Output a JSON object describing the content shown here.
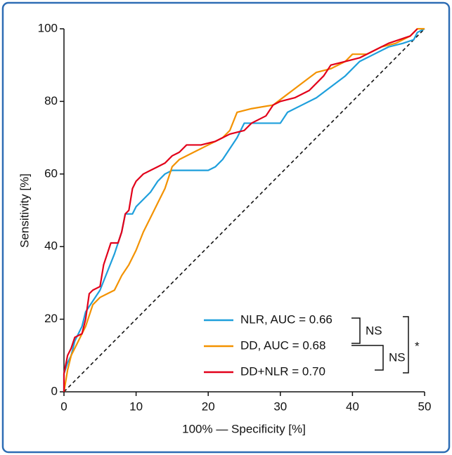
{
  "chart_data": {
    "type": "line",
    "x_label": "100% — Specificity [%]",
    "y_label": "Sensitivity [%]",
    "xlim": [
      0,
      50
    ],
    "xticks": [
      0,
      10,
      20,
      30,
      40,
      50
    ],
    "ylim": [
      0,
      100
    ],
    "yticks": [
      0,
      20,
      40,
      60,
      80,
      100
    ],
    "diagonal": true,
    "series": [
      {
        "name": "NLR, AUC = 0.66",
        "color": "#1e9fdc",
        "x": [
          0,
          0,
          0.5,
          1,
          1.5,
          2,
          2.5,
          3,
          4,
          5,
          6,
          7,
          8,
          8.5,
          9.5,
          10,
          11,
          12,
          13,
          14,
          15,
          20,
          21,
          22,
          23,
          24,
          25,
          30,
          31,
          33,
          35,
          37,
          39,
          41,
          43,
          45,
          47,
          48.5,
          49,
          50
        ],
        "values": [
          0,
          5,
          8,
          10,
          14,
          16,
          18,
          22,
          25,
          28,
          33,
          38,
          44,
          49,
          49,
          51,
          53,
          55,
          58,
          60,
          61,
          61,
          62,
          64,
          67,
          70,
          74,
          74,
          77,
          79,
          81,
          84,
          87,
          91,
          93,
          95,
          96,
          97,
          99,
          100
        ]
      },
      {
        "name": "DD, AUC = 0.68",
        "color": "#f39200",
        "x": [
          0,
          0.5,
          1,
          2,
          3,
          4,
          5,
          6,
          7,
          8,
          9,
          10,
          11,
          12,
          13,
          14,
          15,
          16,
          18,
          20,
          22,
          23,
          24,
          26,
          29,
          31,
          33,
          35,
          37,
          39,
          40,
          42,
          44,
          46,
          48,
          49,
          50
        ],
        "values": [
          0,
          6,
          10,
          14,
          18,
          24,
          26,
          27,
          28,
          32,
          35,
          39,
          44,
          48,
          52,
          56,
          62,
          64,
          66,
          68,
          70,
          72,
          77,
          78,
          79,
          82,
          85,
          88,
          89,
          91,
          93,
          93,
          95,
          96,
          98,
          100,
          100
        ]
      },
      {
        "name": "DD+NLR = 0.70",
        "color": "#e2001a",
        "x": [
          0,
          0,
          0.5,
          1,
          1.5,
          2.5,
          3,
          3.5,
          4,
          5,
          5.5,
          6,
          6.5,
          7.5,
          8,
          8.5,
          9,
          9.5,
          10,
          11,
          12,
          13,
          14,
          15,
          16,
          17,
          19,
          21,
          22,
          23,
          25,
          26,
          28,
          29,
          30,
          32,
          34,
          36,
          37,
          39,
          41,
          43,
          45,
          48,
          49
        ],
        "values": [
          0,
          5,
          10,
          12,
          15,
          16,
          20,
          27,
          28,
          29,
          35,
          38,
          41,
          41,
          44,
          49,
          50,
          56,
          58,
          60,
          61,
          62,
          63,
          65,
          66,
          68,
          68,
          69,
          70,
          71,
          72,
          74,
          76,
          79,
          80,
          81,
          83,
          87,
          90,
          91,
          92,
          94,
          96,
          98,
          100
        ]
      }
    ],
    "annotations": [
      "NS",
      "NS",
      "*"
    ]
  }
}
